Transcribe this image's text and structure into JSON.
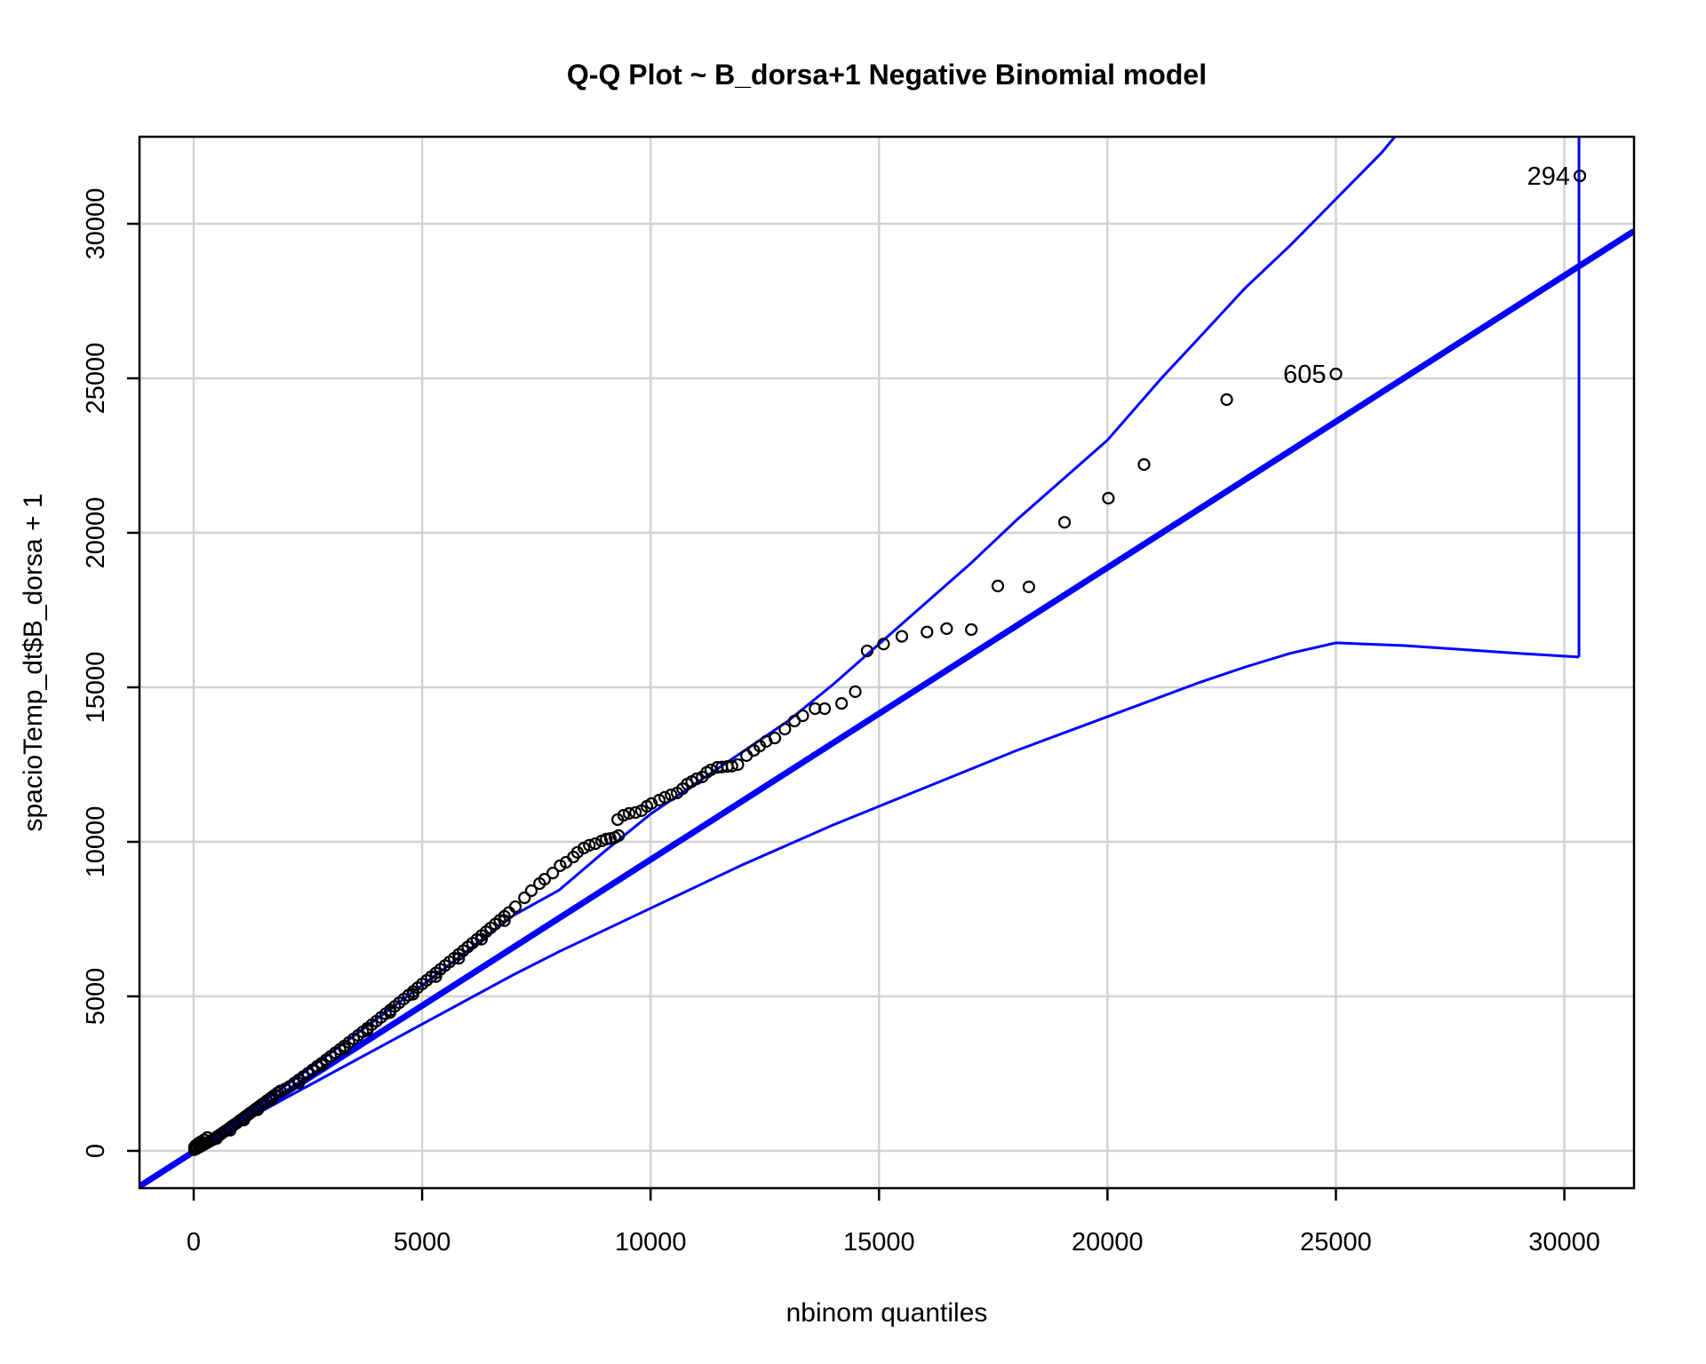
{
  "window": {
    "title": "Q-Q Plot ~ B_dorsa+1 Negative Binomial model"
  },
  "chart_data": {
    "type": "scatter",
    "title": "Q-Q Plot ~ B_dorsa+1 Negative Binomial model",
    "xlabel": "nbinom quantiles",
    "ylabel": "spacioTemp_dt$B_dorsa + 1",
    "xlim": [
      -1186,
      31525
    ],
    "ylim": [
      -1207,
      32816
    ],
    "x_ticks": [
      0,
      5000,
      10000,
      15000,
      20000,
      25000,
      30000
    ],
    "y_ticks": [
      0,
      5000,
      10000,
      15000,
      20000,
      25000,
      30000
    ],
    "grid": true,
    "legend_position": "none",
    "colors": {
      "envelope_and_line": "#0000FF",
      "grid": "#D3D3D3",
      "point_stroke": "#000000",
      "background": "#FFFFFF",
      "frame": "#000000"
    },
    "reference_line": {
      "x1": -1186,
      "y1": -1147,
      "x2": 31525,
      "y2": 29765
    },
    "upper_envelope": [
      [
        -1150,
        -1100
      ],
      [
        0,
        30
      ],
      [
        1000,
        1050
      ],
      [
        2000,
        2100
      ],
      [
        3000,
        3170
      ],
      [
        4000,
        4260
      ],
      [
        5000,
        5360
      ],
      [
        6000,
        6480
      ],
      [
        7000,
        7620
      ],
      [
        8000,
        8440
      ],
      [
        9000,
        9700
      ],
      [
        10000,
        10900
      ],
      [
        11000,
        11900
      ],
      [
        12000,
        12900
      ],
      [
        13000,
        13900
      ],
      [
        14000,
        15100
      ],
      [
        15000,
        16400
      ],
      [
        16000,
        17700
      ],
      [
        17000,
        19000
      ],
      [
        18000,
        20400
      ],
      [
        19000,
        21700
      ],
      [
        20000,
        23000
      ],
      [
        21180,
        25000
      ],
      [
        22000,
        26300
      ],
      [
        23000,
        27900
      ],
      [
        24000,
        29300
      ],
      [
        25000,
        30800
      ],
      [
        26000,
        32300
      ],
      [
        26320,
        32870
      ]
    ],
    "lower_envelope": [
      [
        -1150,
        -1150
      ],
      [
        0,
        -30
      ],
      [
        1000,
        880
      ],
      [
        2000,
        1700
      ],
      [
        3000,
        2500
      ],
      [
        4000,
        3300
      ],
      [
        5000,
        4100
      ],
      [
        6000,
        4900
      ],
      [
        7000,
        5700
      ],
      [
        8000,
        6450
      ],
      [
        9000,
        7150
      ],
      [
        10000,
        7850
      ],
      [
        11000,
        8550
      ],
      [
        12000,
        9250
      ],
      [
        13000,
        9900
      ],
      [
        14000,
        10550
      ],
      [
        15000,
        11150
      ],
      [
        16000,
        11750
      ],
      [
        17000,
        12350
      ],
      [
        18000,
        12950
      ],
      [
        19000,
        13500
      ],
      [
        20000,
        14050
      ],
      [
        21000,
        14600
      ],
      [
        22000,
        15150
      ],
      [
        23000,
        15650
      ],
      [
        24000,
        16100
      ],
      [
        25000,
        16440
      ],
      [
        26500,
        16350
      ],
      [
        28000,
        16200
      ],
      [
        29000,
        16100
      ],
      [
        30320,
        15980
      ]
    ],
    "envelope_closing_segment": {
      "x": 30320,
      "y_bottom": 15980,
      "y_top": 32816
    },
    "points": [
      [
        20,
        40
      ],
      [
        70,
        80
      ],
      [
        120,
        120
      ],
      [
        170,
        160
      ],
      [
        220,
        200
      ],
      [
        280,
        250
      ],
      [
        340,
        300
      ],
      [
        400,
        350
      ],
      [
        460,
        410
      ],
      [
        520,
        470
      ],
      [
        580,
        530
      ],
      [
        640,
        590
      ],
      [
        700,
        650
      ],
      [
        760,
        710
      ],
      [
        820,
        780
      ],
      [
        880,
        840
      ],
      [
        940,
        900
      ],
      [
        1000,
        970
      ],
      [
        1060,
        1030
      ],
      [
        1120,
        1100
      ],
      [
        1180,
        1160
      ],
      [
        1240,
        1230
      ],
      [
        1300,
        1290
      ],
      [
        1360,
        1360
      ],
      [
        1420,
        1420
      ],
      [
        1480,
        1490
      ],
      [
        1540,
        1550
      ],
      [
        1600,
        1620
      ],
      [
        1660,
        1680
      ],
      [
        1720,
        1750
      ],
      [
        1780,
        1810
      ],
      [
        1840,
        1880
      ],
      [
        1900,
        1940
      ],
      [
        2000,
        2000
      ],
      [
        40,
        170
      ],
      [
        100,
        240
      ],
      [
        160,
        300
      ],
      [
        230,
        360
      ],
      [
        300,
        430
      ],
      [
        15,
        110
      ],
      [
        500,
        400
      ],
      [
        800,
        670
      ],
      [
        1100,
        1000
      ],
      [
        1400,
        1330
      ],
      [
        1700,
        1660
      ],
      [
        2100,
        2085
      ],
      [
        2200,
        2191
      ],
      [
        2300,
        2298
      ],
      [
        2400,
        2405
      ],
      [
        2500,
        2513
      ],
      [
        2600,
        2621
      ],
      [
        2700,
        2730
      ],
      [
        2800,
        2839
      ],
      [
        2900,
        2949
      ],
      [
        3000,
        3060
      ],
      [
        3100,
        3171
      ],
      [
        3200,
        3283
      ],
      [
        3300,
        3396
      ],
      [
        3400,
        3509
      ],
      [
        3500,
        3623
      ],
      [
        3600,
        3737
      ],
      [
        3700,
        3852
      ],
      [
        3800,
        3967
      ],
      [
        3900,
        4083
      ],
      [
        4000,
        4200
      ],
      [
        4100,
        4317
      ],
      [
        4200,
        4435
      ],
      [
        4300,
        4554
      ],
      [
        4400,
        4673
      ],
      [
        4500,
        4793
      ],
      [
        4600,
        4913
      ],
      [
        4700,
        5034
      ],
      [
        4800,
        5155
      ],
      [
        4900,
        5277
      ],
      [
        2300,
        2200
      ],
      [
        2800,
        2780
      ],
      [
        3300,
        3310
      ],
      [
        3800,
        3900
      ],
      [
        4300,
        4480
      ],
      [
        4800,
        5070
      ],
      [
        5300,
        5640
      ],
      [
        5800,
        6230
      ],
      [
        6300,
        6850
      ],
      [
        6800,
        7450
      ],
      [
        5000,
        5400
      ],
      [
        5100,
        5518
      ],
      [
        5200,
        5637
      ],
      [
        5300,
        5756
      ],
      [
        5400,
        5875
      ],
      [
        5500,
        5995
      ],
      [
        5600,
        6115
      ],
      [
        5700,
        6236
      ],
      [
        5800,
        6357
      ],
      [
        5900,
        6478
      ],
      [
        6000,
        6600
      ],
      [
        6100,
        6722
      ],
      [
        6200,
        6845
      ],
      [
        6300,
        6968
      ],
      [
        6400,
        7091
      ],
      [
        6500,
        7215
      ],
      [
        6600,
        7339
      ],
      [
        6700,
        7464
      ],
      [
        6800,
        7589
      ],
      [
        6900,
        7714
      ],
      [
        7040,
        7900
      ],
      [
        7240,
        8190
      ],
      [
        7390,
        8420
      ],
      [
        7570,
        8650
      ],
      [
        7680,
        8790
      ],
      [
        7860,
        8990
      ],
      [
        8020,
        9230
      ],
      [
        8150,
        9340
      ],
      [
        8310,
        9510
      ],
      [
        8400,
        9660
      ],
      [
        8540,
        9800
      ],
      [
        8660,
        9890
      ],
      [
        8790,
        9940
      ],
      [
        8930,
        10030
      ],
      [
        9030,
        10090
      ],
      [
        9120,
        10110
      ],
      [
        9220,
        10140
      ],
      [
        9300,
        10200
      ],
      [
        9280,
        10720
      ],
      [
        9410,
        10860
      ],
      [
        9530,
        10920
      ],
      [
        9670,
        10950
      ],
      [
        9800,
        11010
      ],
      [
        9920,
        11150
      ],
      [
        10020,
        11240
      ],
      [
        10190,
        11350
      ],
      [
        10310,
        11440
      ],
      [
        10450,
        11520
      ],
      [
        10580,
        11580
      ],
      [
        10700,
        11720
      ],
      [
        10800,
        11870
      ],
      [
        10900,
        11950
      ],
      [
        11010,
        12040
      ],
      [
        11130,
        12100
      ],
      [
        11230,
        12250
      ],
      [
        11320,
        12330
      ],
      [
        11460,
        12410
      ],
      [
        11560,
        12420
      ],
      [
        11680,
        12440
      ],
      [
        11780,
        12450
      ],
      [
        11910,
        12500
      ],
      [
        12100,
        12790
      ],
      [
        12260,
        12960
      ],
      [
        12390,
        13100
      ],
      [
        12530,
        13250
      ],
      [
        12720,
        13360
      ],
      [
        12940,
        13650
      ],
      [
        13150,
        13910
      ],
      [
        13330,
        14080
      ],
      [
        13600,
        14310
      ],
      [
        13810,
        14310
      ],
      [
        14180,
        14480
      ],
      [
        14480,
        14860
      ],
      [
        14740,
        16180
      ],
      [
        15100,
        16400
      ],
      [
        15500,
        16650
      ],
      [
        16050,
        16790
      ],
      [
        16480,
        16900
      ],
      [
        17020,
        16870
      ],
      [
        17600,
        18280
      ],
      [
        18280,
        18250
      ],
      [
        19060,
        20340
      ],
      [
        20020,
        21120
      ],
      [
        20800,
        22210
      ],
      [
        22610,
        24310
      ]
    ],
    "labeled_points": [
      {
        "label": "605",
        "x": 25000,
        "y": 25140
      },
      {
        "label": "294",
        "x": 30340,
        "y": 31550
      }
    ]
  }
}
